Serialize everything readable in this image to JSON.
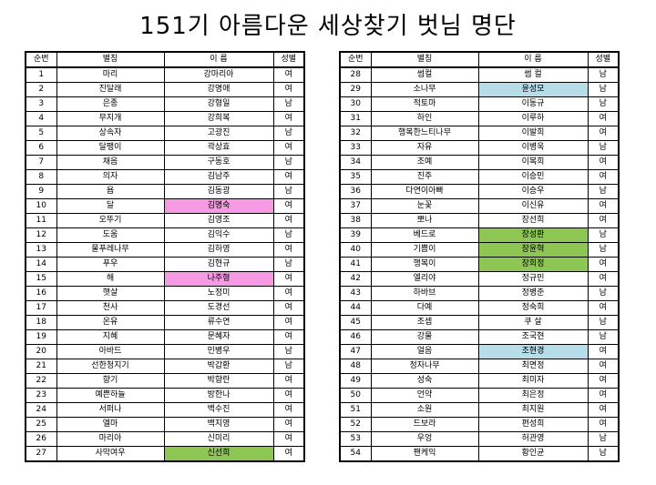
{
  "title": "151기 아름다운 세상찾기 벗님 명단",
  "headers": {
    "no": "순번",
    "nickname": "별칭",
    "name": "이 름",
    "gender": "성별"
  },
  "highlight_colors": {
    "pink": "#f79ae4",
    "blue": "#b7dde8",
    "green": "#8ec653"
  },
  "left_rows": [
    {
      "no": "1",
      "nickname": "마리",
      "name": "강마리아",
      "gender": "여",
      "hl": ""
    },
    {
      "no": "2",
      "nickname": "진달래",
      "name": "강명애",
      "gender": "여",
      "hl": ""
    },
    {
      "no": "3",
      "nickname": "은종",
      "name": "강형일",
      "gender": "남",
      "hl": ""
    },
    {
      "no": "4",
      "nickname": "무지개",
      "name": "강희복",
      "gender": "여",
      "hl": ""
    },
    {
      "no": "5",
      "nickname": "상속자",
      "name": "고광진",
      "gender": "남",
      "hl": ""
    },
    {
      "no": "6",
      "nickname": "달팽이",
      "name": "곽상효",
      "gender": "여",
      "hl": ""
    },
    {
      "no": "7",
      "nickname": "채음",
      "name": "구동호",
      "gender": "남",
      "hl": ""
    },
    {
      "no": "8",
      "nickname": "의자",
      "name": "김남주",
      "gender": "여",
      "hl": ""
    },
    {
      "no": "9",
      "nickname": "욥",
      "name": "김동광",
      "gender": "남",
      "hl": ""
    },
    {
      "no": "10",
      "nickname": "달",
      "name": "김명숙",
      "gender": "여",
      "hl": "pink"
    },
    {
      "no": "11",
      "nickname": "오뚜기",
      "name": "김영조",
      "gender": "여",
      "hl": ""
    },
    {
      "no": "12",
      "nickname": "도움",
      "name": "김익수",
      "gender": "남",
      "hl": ""
    },
    {
      "no": "13",
      "nickname": "물푸레나무",
      "name": "김하영",
      "gender": "여",
      "hl": ""
    },
    {
      "no": "14",
      "nickname": "푸우",
      "name": "김현규",
      "gender": "남",
      "hl": ""
    },
    {
      "no": "15",
      "nickname": "해",
      "name": "나주형",
      "gender": "여",
      "hl": "pink"
    },
    {
      "no": "16",
      "nickname": "햇살",
      "name": "노정미",
      "gender": "여",
      "hl": ""
    },
    {
      "no": "17",
      "nickname": "천사",
      "name": "도경선",
      "gender": "여",
      "hl": ""
    },
    {
      "no": "18",
      "nickname": "온유",
      "name": "류수연",
      "gender": "여",
      "hl": ""
    },
    {
      "no": "19",
      "nickname": "지혜",
      "name": "문혜자",
      "gender": "여",
      "hl": ""
    },
    {
      "no": "20",
      "nickname": "아바드",
      "name": "민병우",
      "gender": "남",
      "hl": ""
    },
    {
      "no": "21",
      "nickname": "선한청지기",
      "name": "박갑환",
      "gender": "남",
      "hl": ""
    },
    {
      "no": "22",
      "nickname": "향기",
      "name": "박향란",
      "gender": "여",
      "hl": ""
    },
    {
      "no": "23",
      "nickname": "예쁜하늘",
      "name": "방한나",
      "gender": "여",
      "hl": ""
    },
    {
      "no": "24",
      "nickname": "서퍼나",
      "name": "백수진",
      "gender": "여",
      "hl": ""
    },
    {
      "no": "25",
      "nickname": "엘마",
      "name": "백지영",
      "gender": "여",
      "hl": ""
    },
    {
      "no": "26",
      "nickname": "마리아",
      "name": "신미리",
      "gender": "여",
      "hl": ""
    },
    {
      "no": "27",
      "nickname": "사막여우",
      "name": "신선희",
      "gender": "여",
      "hl": "green"
    }
  ],
  "right_rows": [
    {
      "no": "28",
      "nickname": "썸컬",
      "name": "썸 컬",
      "gender": "남",
      "hl": ""
    },
    {
      "no": "29",
      "nickname": "소나무",
      "name": "윤성모",
      "gender": "남",
      "hl": "blue"
    },
    {
      "no": "30",
      "nickname": "적토마",
      "name": "이동규",
      "gender": "남",
      "hl": ""
    },
    {
      "no": "31",
      "nickname": "하인",
      "name": "이루하",
      "gender": "여",
      "hl": ""
    },
    {
      "no": "32",
      "nickname": "행복한느티나무",
      "name": "이발희",
      "gender": "여",
      "hl": ""
    },
    {
      "no": "33",
      "nickname": "자유",
      "name": "이병욱",
      "gender": "남",
      "hl": ""
    },
    {
      "no": "34",
      "nickname": "조예",
      "name": "이복희",
      "gender": "여",
      "hl": ""
    },
    {
      "no": "35",
      "nickname": "진주",
      "name": "이승민",
      "gender": "여",
      "hl": ""
    },
    {
      "no": "36",
      "nickname": "다연이아빠",
      "name": "이승우",
      "gender": "남",
      "hl": ""
    },
    {
      "no": "37",
      "nickname": "눈꽃",
      "name": "이신유",
      "gender": "여",
      "hl": ""
    },
    {
      "no": "38",
      "nickname": "뽀나",
      "name": "장선희",
      "gender": "여",
      "hl": ""
    },
    {
      "no": "39",
      "nickname": "베드로",
      "name": "장성환",
      "gender": "남",
      "hl": "green"
    },
    {
      "no": "40",
      "nickname": "기쁨이",
      "name": "장윤혁",
      "gender": "남",
      "hl": "green"
    },
    {
      "no": "41",
      "nickname": "행복이",
      "name": "장희정",
      "gender": "여",
      "hl": "green"
    },
    {
      "no": "42",
      "nickname": "엘리야",
      "name": "정규민",
      "gender": "여",
      "hl": ""
    },
    {
      "no": "43",
      "nickname": "하바브",
      "name": "정병준",
      "gender": "남",
      "hl": ""
    },
    {
      "no": "44",
      "nickname": "다예",
      "name": "정숙희",
      "gender": "여",
      "hl": ""
    },
    {
      "no": "45",
      "nickname": "조셉",
      "name": "쿠 살",
      "gender": "남",
      "hl": ""
    },
    {
      "no": "46",
      "nickname": "강물",
      "name": "조국현",
      "gender": "남",
      "hl": ""
    },
    {
      "no": "47",
      "nickname": "얼음",
      "name": "조현경",
      "gender": "여",
      "hl": "blue"
    },
    {
      "no": "48",
      "nickname": "정자나무",
      "name": "최면정",
      "gender": "여",
      "hl": ""
    },
    {
      "no": "49",
      "nickname": "성숙",
      "name": "최미자",
      "gender": "여",
      "hl": ""
    },
    {
      "no": "50",
      "nickname": "언약",
      "name": "최은정",
      "gender": "여",
      "hl": ""
    },
    {
      "no": "51",
      "nickname": "소원",
      "name": "최지원",
      "gender": "여",
      "hl": ""
    },
    {
      "no": "52",
      "nickname": "드보라",
      "name": "편성희",
      "gender": "여",
      "hl": ""
    },
    {
      "no": "53",
      "nickname": "우엉",
      "name": "허관영",
      "gender": "남",
      "hl": ""
    },
    {
      "no": "54",
      "nickname": "팬케익",
      "name": "황인균",
      "gender": "남",
      "hl": ""
    }
  ]
}
